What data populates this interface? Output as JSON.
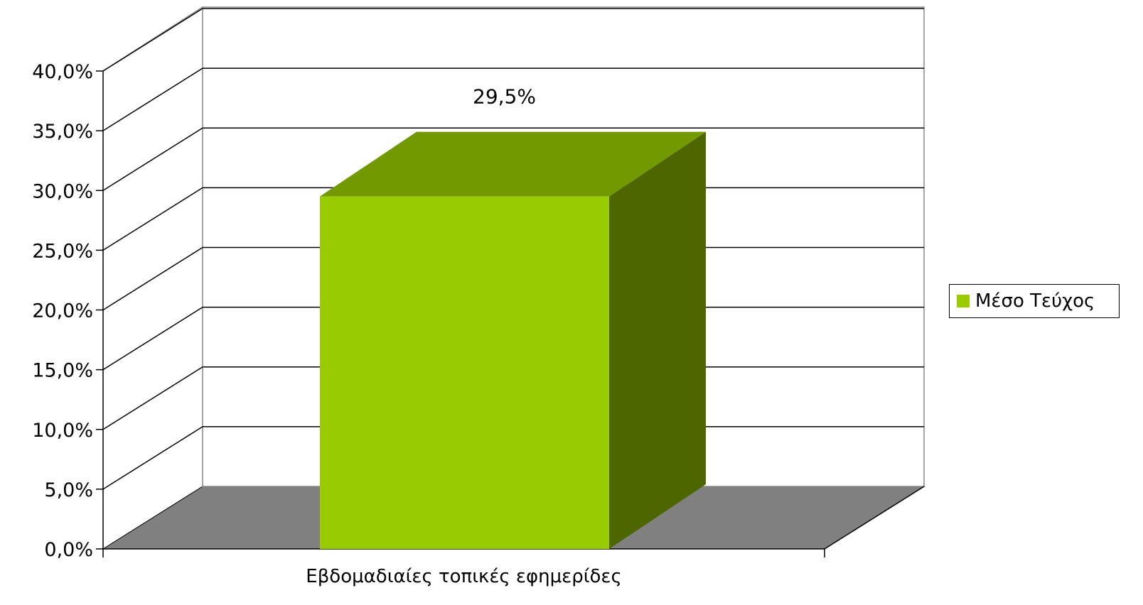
{
  "chart_data": {
    "type": "bar",
    "style": "3d",
    "categories": [
      "Εβδομαδιαίες τοπικές εφημερίδες"
    ],
    "series": [
      {
        "name": "Μέσο Τεύχος",
        "values": [
          29.5
        ],
        "color": "#99CC00"
      }
    ],
    "data_labels": [
      "29,5%"
    ],
    "y_ticks": [
      "0,0%",
      "5,0%",
      "10,0%",
      "15,0%",
      "20,0%",
      "25,0%",
      "30,0%",
      "35,0%",
      "40,0%"
    ],
    "ylim": [
      0,
      40
    ],
    "grid": true,
    "legend": "right",
    "colors": {
      "bar_front": "#99CC00",
      "bar_top": "#739900",
      "bar_side": "#4D6600",
      "floor": "#808080",
      "wall_lines": "#000000"
    }
  }
}
